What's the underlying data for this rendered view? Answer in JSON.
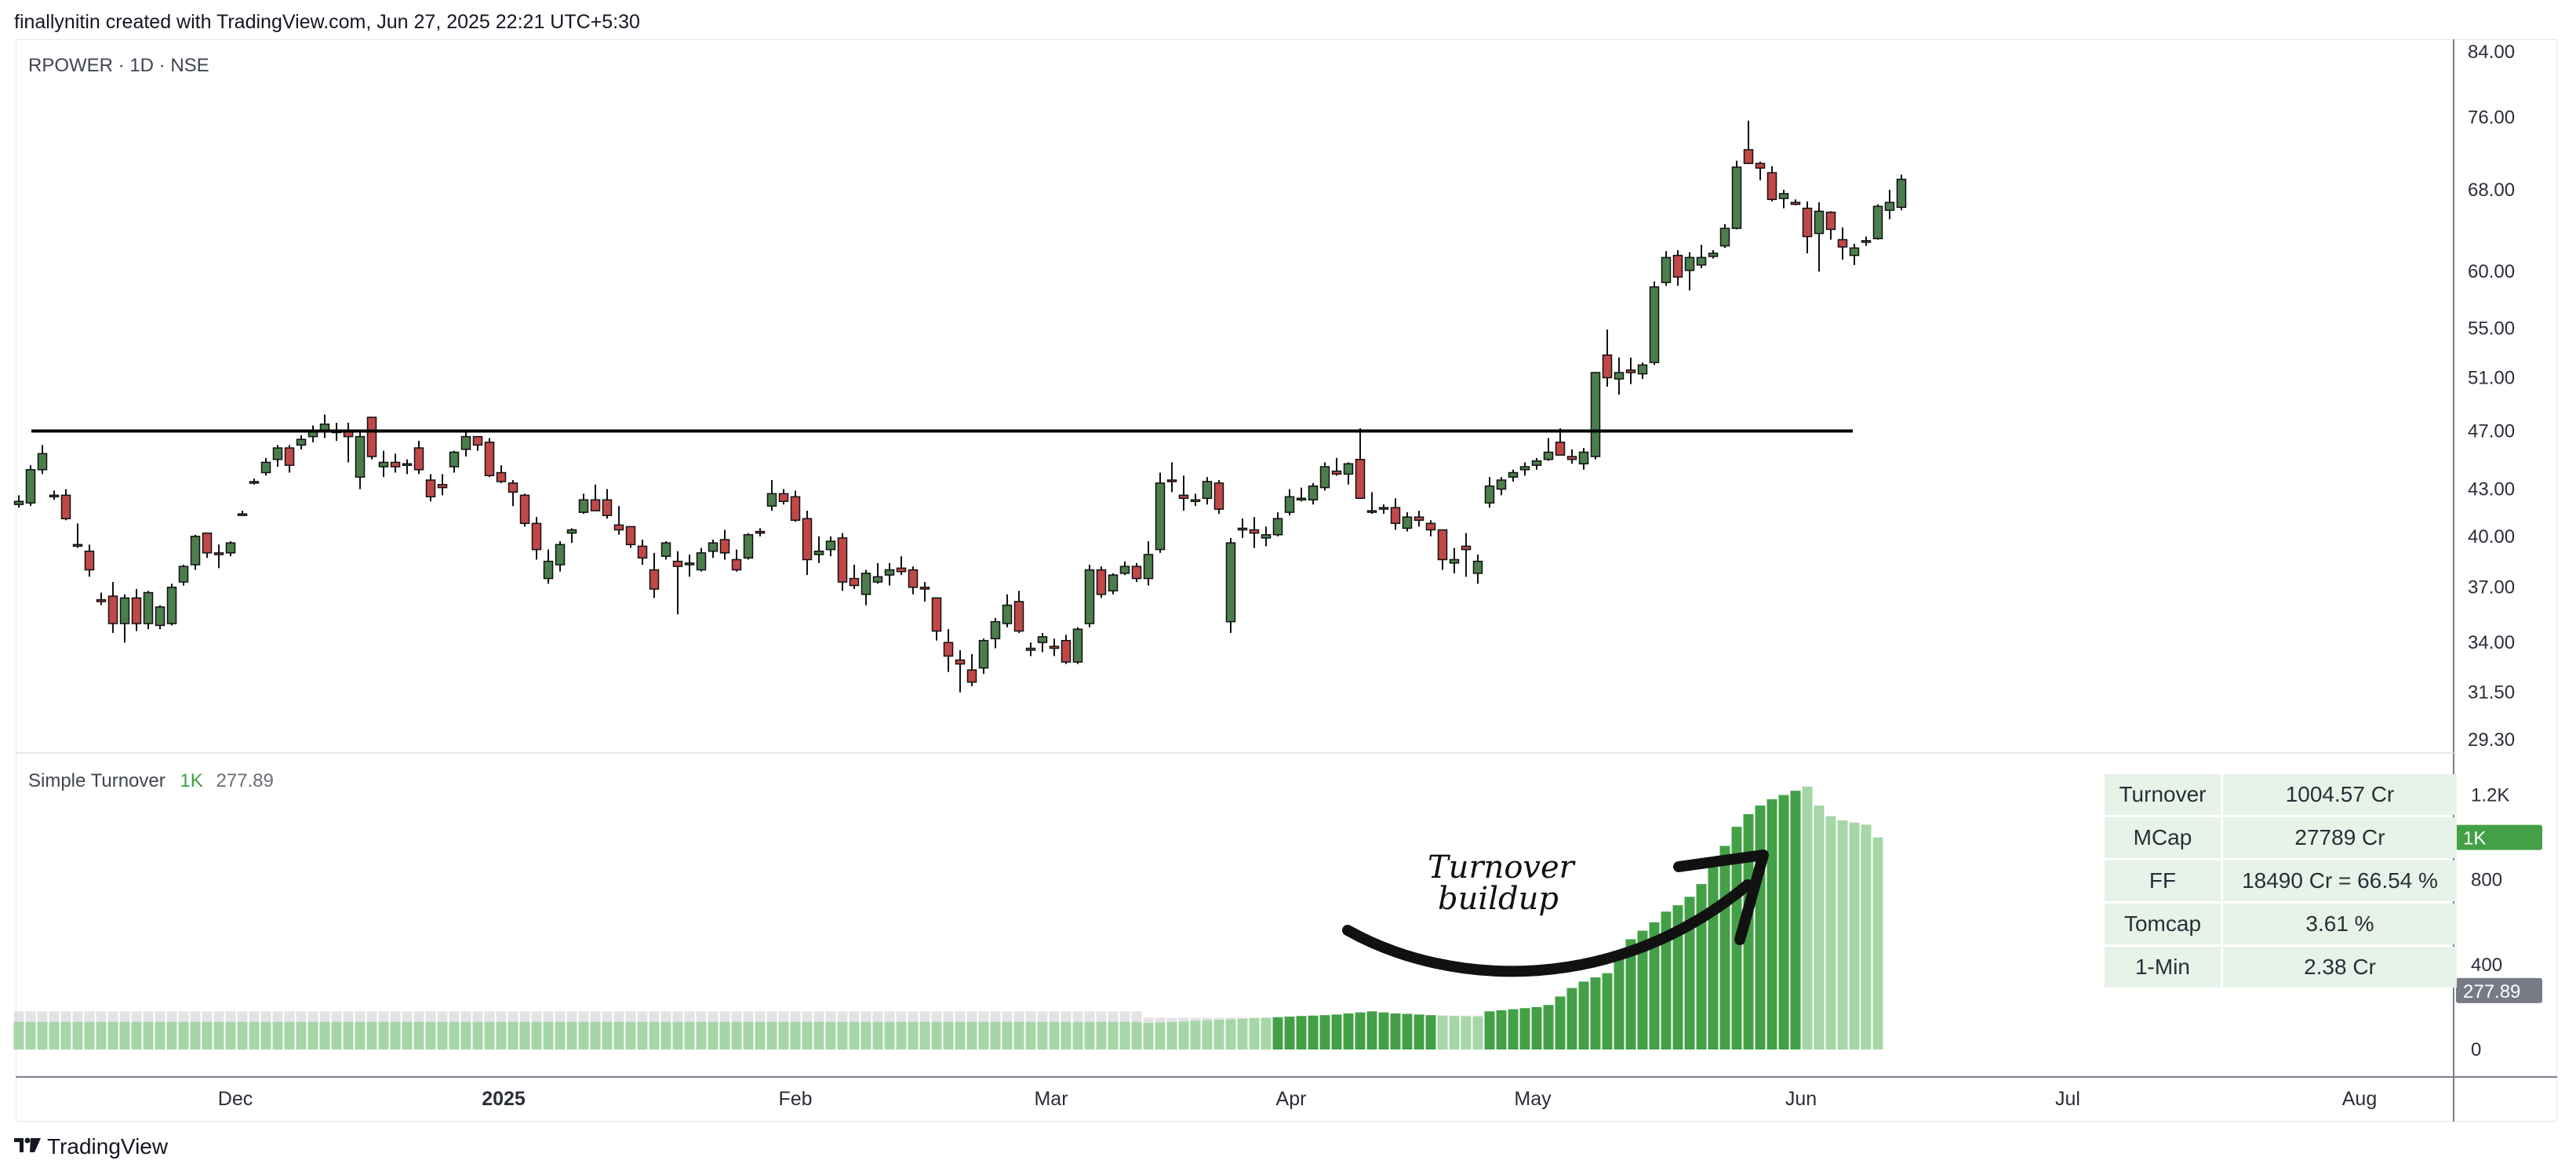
{
  "header": {
    "caption": "finallynitin created with TradingView.com, Jun 27, 2025 22:21 UTC+5:30"
  },
  "main_legend": {
    "symbol": "RPOWER · 1D · NSE"
  },
  "indicator_legend": {
    "name": "Simple Turnover",
    "value1": "1K",
    "value2": "277.89"
  },
  "info_table": [
    {
      "key": "Turnover",
      "value": "1004.57 Cr"
    },
    {
      "key": "MCap",
      "value": "27789 Cr"
    },
    {
      "key": "FF",
      "value": "18490 Cr = 66.54 %"
    },
    {
      "key": "Tomcap",
      "value": "3.61 %"
    },
    {
      "key": "1-Min",
      "value": "2.38 Cr"
    }
  ],
  "annotation": {
    "line1": "Turnover",
    "line2": "buildup"
  },
  "footer": {
    "brand": "TradingView",
    "logo_icon": "tradingview-logo-icon"
  },
  "colors": {
    "up": "#4c7d4c",
    "down": "#c04848",
    "vol_light": "#a5d6a7",
    "vol_mid": "#66bb6a",
    "vol_dark": "#43a047",
    "vol_gray": "#d9d9d9",
    "tag_green": "#43a047",
    "tag_gray": "#787b86"
  },
  "chart_data": [
    {
      "type": "candlestick",
      "price_axis_ticks": [
        "84.00",
        "76.00",
        "68.00",
        "60.00",
        "55.00",
        "51.00",
        "47.00",
        "43.00",
        "40.00",
        "37.00",
        "34.00",
        "31.50",
        "29.30"
      ],
      "price_axis_values": [
        84,
        76,
        68,
        60,
        55,
        51,
        47,
        43,
        40,
        37,
        34,
        31.5,
        29.3
      ],
      "time_axis_labels": [
        "Dec",
        "2025",
        "Feb",
        "Mar",
        "Apr",
        "May",
        "Jun",
        "Jul",
        "Aug"
      ],
      "resistance_level": 47.0,
      "ohlc": [
        [
          42.0,
          42.6,
          41.8,
          42.2
        ],
        [
          42.1,
          44.6,
          41.9,
          44.3
        ],
        [
          44.3,
          46.0,
          44.0,
          45.4
        ],
        [
          42.5,
          42.9,
          42.3,
          42.6
        ],
        [
          42.6,
          43.0,
          41.0,
          41.1
        ],
        [
          39.5,
          40.8,
          39.3,
          39.5
        ],
        [
          39.1,
          39.5,
          37.6,
          38.0
        ],
        [
          36.3,
          36.7,
          36.0,
          36.2
        ],
        [
          36.5,
          37.3,
          34.5,
          35.0
        ],
        [
          35.0,
          36.6,
          34.0,
          36.4
        ],
        [
          36.4,
          36.9,
          34.6,
          35.0
        ],
        [
          35.0,
          36.8,
          34.7,
          36.7
        ],
        [
          34.9,
          36.0,
          34.7,
          35.9
        ],
        [
          35.0,
          37.2,
          34.9,
          37.0
        ],
        [
          37.3,
          38.3,
          37.1,
          38.2
        ],
        [
          38.3,
          40.1,
          38.0,
          40.0
        ],
        [
          40.2,
          40.2,
          38.7,
          39.0
        ],
        [
          39.0,
          39.5,
          38.1,
          38.9
        ],
        [
          39.0,
          39.7,
          38.8,
          39.6
        ],
        [
          41.4,
          41.6,
          41.3,
          41.4
        ],
        [
          43.5,
          43.7,
          43.3,
          43.5
        ],
        [
          44.1,
          45.1,
          43.9,
          44.8
        ],
        [
          45.0,
          46.0,
          44.5,
          45.8
        ],
        [
          45.8,
          46.0,
          44.1,
          44.6
        ],
        [
          46.0,
          46.7,
          45.7,
          46.4
        ],
        [
          46.6,
          47.4,
          46.2,
          47.0
        ],
        [
          47.0,
          48.2,
          46.5,
          47.5
        ],
        [
          47.0,
          47.6,
          46.3,
          46.9
        ],
        [
          47.0,
          47.6,
          44.8,
          46.6
        ],
        [
          43.8,
          47.0,
          43.0,
          46.6
        ],
        [
          48.0,
          48.0,
          45.0,
          45.2
        ],
        [
          44.5,
          45.6,
          43.8,
          44.8
        ],
        [
          44.8,
          45.4,
          44.1,
          44.5
        ],
        [
          44.6,
          45.0,
          44.0,
          44.7
        ],
        [
          45.8,
          46.3,
          44.0,
          44.3
        ],
        [
          43.6,
          44.0,
          42.2,
          42.5
        ],
        [
          43.3,
          44.0,
          42.6,
          43.1
        ],
        [
          44.5,
          45.6,
          44.1,
          45.5
        ],
        [
          45.7,
          46.9,
          45.2,
          46.6
        ],
        [
          46.6,
          46.6,
          45.6,
          46.0
        ],
        [
          46.2,
          46.5,
          43.8,
          43.9
        ],
        [
          44.1,
          44.6,
          43.4,
          43.5
        ],
        [
          43.4,
          43.6,
          41.9,
          42.8
        ],
        [
          42.6,
          42.7,
          40.6,
          40.8
        ],
        [
          40.8,
          41.2,
          38.6,
          39.2
        ],
        [
          37.5,
          39.2,
          37.2,
          38.5
        ],
        [
          38.3,
          39.7,
          37.9,
          39.5
        ],
        [
          40.2,
          40.5,
          39.6,
          40.4
        ],
        [
          41.5,
          42.7,
          41.4,
          42.3
        ],
        [
          42.3,
          43.3,
          41.6,
          41.6
        ],
        [
          42.3,
          43.0,
          41.1,
          41.3
        ],
        [
          40.7,
          41.9,
          40.1,
          40.4
        ],
        [
          40.6,
          40.6,
          39.3,
          39.5
        ],
        [
          39.4,
          39.8,
          38.3,
          38.7
        ],
        [
          38.0,
          39.0,
          36.4,
          36.9
        ],
        [
          38.8,
          39.7,
          38.6,
          39.6
        ],
        [
          38.5,
          39.1,
          35.5,
          38.2
        ],
        [
          38.3,
          38.9,
          37.6,
          38.4
        ],
        [
          38.0,
          39.3,
          37.9,
          39.0
        ],
        [
          39.1,
          39.8,
          38.7,
          39.6
        ],
        [
          39.8,
          40.4,
          38.6,
          39.0
        ],
        [
          38.6,
          39.2,
          37.9,
          38.0
        ],
        [
          38.7,
          40.2,
          38.6,
          40.1
        ],
        [
          40.3,
          40.5,
          40.0,
          40.2
        ],
        [
          41.9,
          43.6,
          41.6,
          42.7
        ],
        [
          42.7,
          43.0,
          42.0,
          42.2
        ],
        [
          42.5,
          42.9,
          40.9,
          41.0
        ],
        [
          41.1,
          41.6,
          37.7,
          38.6
        ],
        [
          38.9,
          40.0,
          38.4,
          39.1
        ],
        [
          39.2,
          40.0,
          38.8,
          39.7
        ],
        [
          39.9,
          40.2,
          36.8,
          37.3
        ],
        [
          37.5,
          38.3,
          36.9,
          37.1
        ],
        [
          36.6,
          38.0,
          36.0,
          37.8
        ],
        [
          37.3,
          38.4,
          37.2,
          37.6
        ],
        [
          37.7,
          38.4,
          37.1,
          38.0
        ],
        [
          38.1,
          38.8,
          37.7,
          37.9
        ],
        [
          38.0,
          38.2,
          36.6,
          37.0
        ],
        [
          37.0,
          37.3,
          36.2,
          36.9
        ],
        [
          36.4,
          36.4,
          34.1,
          34.6
        ],
        [
          34.0,
          34.7,
          32.5,
          33.3
        ],
        [
          33.1,
          33.6,
          31.5,
          32.9
        ],
        [
          32.6,
          33.4,
          31.8,
          32.0
        ],
        [
          32.7,
          34.2,
          32.4,
          34.1
        ],
        [
          34.2,
          35.3,
          33.7,
          35.1
        ],
        [
          35.0,
          36.6,
          34.8,
          36.0
        ],
        [
          36.2,
          36.8,
          34.5,
          34.6
        ],
        [
          33.6,
          34.0,
          33.3,
          33.7
        ],
        [
          34.0,
          34.5,
          33.5,
          34.3
        ],
        [
          33.8,
          34.2,
          33.3,
          33.7
        ],
        [
          34.1,
          34.4,
          32.9,
          33.0
        ],
        [
          33.0,
          34.8,
          32.9,
          34.7
        ],
        [
          35.0,
          38.3,
          34.8,
          38.0
        ],
        [
          38.0,
          38.2,
          36.4,
          36.6
        ],
        [
          36.8,
          37.8,
          36.6,
          37.7
        ],
        [
          37.8,
          38.5,
          37.7,
          38.2
        ],
        [
          38.2,
          38.4,
          37.3,
          37.5
        ],
        [
          37.5,
          39.7,
          37.1,
          38.9
        ],
        [
          39.2,
          44.1,
          39.0,
          43.4
        ],
        [
          43.6,
          44.8,
          42.8,
          43.5
        ],
        [
          42.6,
          43.9,
          41.6,
          42.4
        ],
        [
          42.3,
          42.7,
          41.9,
          42.3
        ],
        [
          42.4,
          43.8,
          42.0,
          43.5
        ],
        [
          43.4,
          43.6,
          41.4,
          41.7
        ],
        [
          35.1,
          39.9,
          34.5,
          39.6
        ],
        [
          40.4,
          41.1,
          39.9,
          40.5
        ],
        [
          40.4,
          41.2,
          39.3,
          40.2
        ],
        [
          39.9,
          40.6,
          39.4,
          40.1
        ],
        [
          40.1,
          41.5,
          40.0,
          41.1
        ],
        [
          41.5,
          43.0,
          41.3,
          42.5
        ],
        [
          42.4,
          43.1,
          42.2,
          42.4
        ],
        [
          42.3,
          43.4,
          42.0,
          43.2
        ],
        [
          43.1,
          44.8,
          42.9,
          44.5
        ],
        [
          44.2,
          45.1,
          43.9,
          44.0
        ],
        [
          44.0,
          44.8,
          43.3,
          44.7
        ],
        [
          45.0,
          47.2,
          42.5,
          42.4
        ],
        [
          41.6,
          42.8,
          41.4,
          41.6
        ],
        [
          41.7,
          42.0,
          41.4,
          41.8
        ],
        [
          41.8,
          42.4,
          40.4,
          40.8
        ],
        [
          40.5,
          41.5,
          40.3,
          41.2
        ],
        [
          41.2,
          41.6,
          40.6,
          41.0
        ],
        [
          40.8,
          41.0,
          40.0,
          40.4
        ],
        [
          40.4,
          40.4,
          38.0,
          38.6
        ],
        [
          38.4,
          39.3,
          37.8,
          38.6
        ],
        [
          39.4,
          40.2,
          37.6,
          39.2
        ],
        [
          37.8,
          38.9,
          37.2,
          38.5
        ],
        [
          42.1,
          43.8,
          41.8,
          43.2
        ],
        [
          43.0,
          43.8,
          42.6,
          43.6
        ],
        [
          43.8,
          44.3,
          43.5,
          44.1
        ],
        [
          44.3,
          44.8,
          43.9,
          44.5
        ],
        [
          44.6,
          45.1,
          44.3,
          44.9
        ],
        [
          45.0,
          46.5,
          44.9,
          45.5
        ],
        [
          46.2,
          47.2,
          45.3,
          45.3
        ],
        [
          45.2,
          45.7,
          44.7,
          45.0
        ],
        [
          44.7,
          45.8,
          44.3,
          45.5
        ],
        [
          45.2,
          51.4,
          45.0,
          51.4
        ],
        [
          52.8,
          54.9,
          50.3,
          51.0
        ],
        [
          50.9,
          52.6,
          49.7,
          51.4
        ],
        [
          51.6,
          52.6,
          50.5,
          51.4
        ],
        [
          51.3,
          52.2,
          50.9,
          52.0
        ],
        [
          52.2,
          59.1,
          52.0,
          58.6
        ],
        [
          59.0,
          61.9,
          58.7,
          61.3
        ],
        [
          61.5,
          62.0,
          58.7,
          59.5
        ],
        [
          60.1,
          61.8,
          58.3,
          61.3
        ],
        [
          60.6,
          62.5,
          60.3,
          61.3
        ],
        [
          61.4,
          62.0,
          61.2,
          61.7
        ],
        [
          62.4,
          64.5,
          62.2,
          64.1
        ],
        [
          64.1,
          71.1,
          64.0,
          70.4
        ],
        [
          72.3,
          75.6,
          70.8,
          70.8
        ],
        [
          70.8,
          71.0,
          69.0,
          70.3
        ],
        [
          69.8,
          70.5,
          66.8,
          67.0
        ],
        [
          67.1,
          68.0,
          66.1,
          67.6
        ],
        [
          66.7,
          67.0,
          66.4,
          66.5
        ],
        [
          66.1,
          66.8,
          61.7,
          63.3
        ],
        [
          63.6,
          66.7,
          60.0,
          65.8
        ],
        [
          65.7,
          65.8,
          63.0,
          64.0
        ],
        [
          63.0,
          64.2,
          61.1,
          62.3
        ],
        [
          61.5,
          62.6,
          60.6,
          62.2
        ],
        [
          62.9,
          63.3,
          62.4,
          62.9
        ],
        [
          63.1,
          66.5,
          63.0,
          66.3
        ],
        [
          65.9,
          68.0,
          65.0,
          66.7
        ],
        [
          66.2,
          69.6,
          65.9,
          69.1
        ]
      ],
      "ohlc_note": "open, high, low, close per trading day"
    },
    {
      "type": "bar",
      "name": "Simple Turnover",
      "axis_ticks": [
        "1.2K",
        "800",
        "400",
        "0"
      ],
      "axis_values": [
        1200,
        800,
        400,
        0
      ],
      "tags": [
        "1K",
        "277.89"
      ],
      "turnover": [
        130,
        130,
        130,
        130,
        130,
        130,
        130,
        130,
        130,
        130,
        130,
        130,
        130,
        130,
        130,
        130,
        130,
        130,
        130,
        130,
        130,
        130,
        130,
        130,
        130,
        130,
        130,
        130,
        130,
        130,
        130,
        130,
        130,
        130,
        130,
        130,
        130,
        130,
        130,
        130,
        130,
        130,
        130,
        130,
        130,
        130,
        130,
        130,
        130,
        130,
        130,
        130,
        130,
        130,
        130,
        130,
        130,
        130,
        130,
        130,
        130,
        130,
        130,
        130,
        130,
        130,
        130,
        130,
        130,
        130,
        130,
        130,
        130,
        130,
        130,
        130,
        130,
        130,
        130,
        130,
        130,
        130,
        130,
        130,
        130,
        130,
        130,
        130,
        130,
        130,
        130,
        130,
        130,
        130,
        130,
        130,
        125,
        128,
        130,
        132,
        135,
        138,
        140,
        142,
        145,
        148,
        150,
        152,
        155,
        158,
        160,
        162,
        165,
        170,
        175,
        180,
        175,
        170,
        168,
        165,
        162,
        160,
        158,
        156,
        155,
        180,
        185,
        190,
        195,
        200,
        210,
        250,
        290,
        320,
        340,
        360,
        430,
        520,
        560,
        600,
        650,
        680,
        720,
        780,
        860,
        960,
        1050,
        1110,
        1150,
        1180,
        1200,
        1220,
        1240,
        1150,
        1100,
        1080,
        1070,
        1060,
        1000
      ],
      "avg_turnover": [
        180,
        180,
        180,
        180,
        180,
        180,
        180,
        180,
        180,
        180,
        180,
        180,
        180,
        180,
        180,
        180,
        180,
        180,
        180,
        180,
        180,
        180,
        180,
        180,
        180,
        180,
        180,
        180,
        180,
        180,
        180,
        180,
        180,
        180,
        180,
        180,
        180,
        180,
        180,
        180,
        180,
        180,
        180,
        180,
        180,
        180,
        180,
        180,
        180,
        180,
        180,
        180,
        180,
        180,
        180,
        180,
        180,
        180,
        180,
        180,
        180,
        180,
        180,
        180,
        180,
        180,
        180,
        180,
        180,
        180,
        180,
        180,
        180,
        180,
        180,
        180,
        180,
        180,
        180,
        180,
        180,
        180,
        180,
        180,
        180,
        180,
        180,
        180,
        180,
        180,
        180,
        180,
        180,
        180,
        180,
        180,
        150,
        150,
        150,
        150,
        150,
        150,
        150,
        150,
        150,
        150,
        150,
        150,
        150,
        150,
        150,
        150,
        150,
        150,
        150,
        150,
        160,
        160,
        160,
        160,
        160,
        160,
        160,
        160,
        160,
        160,
        170,
        170,
        170,
        170,
        170,
        180,
        190,
        200,
        210,
        220,
        230,
        240,
        250,
        260,
        270,
        280,
        280,
        280,
        280,
        280,
        280,
        280,
        280,
        280,
        280,
        280,
        280,
        280,
        280,
        280,
        280,
        280,
        280
      ]
    }
  ]
}
